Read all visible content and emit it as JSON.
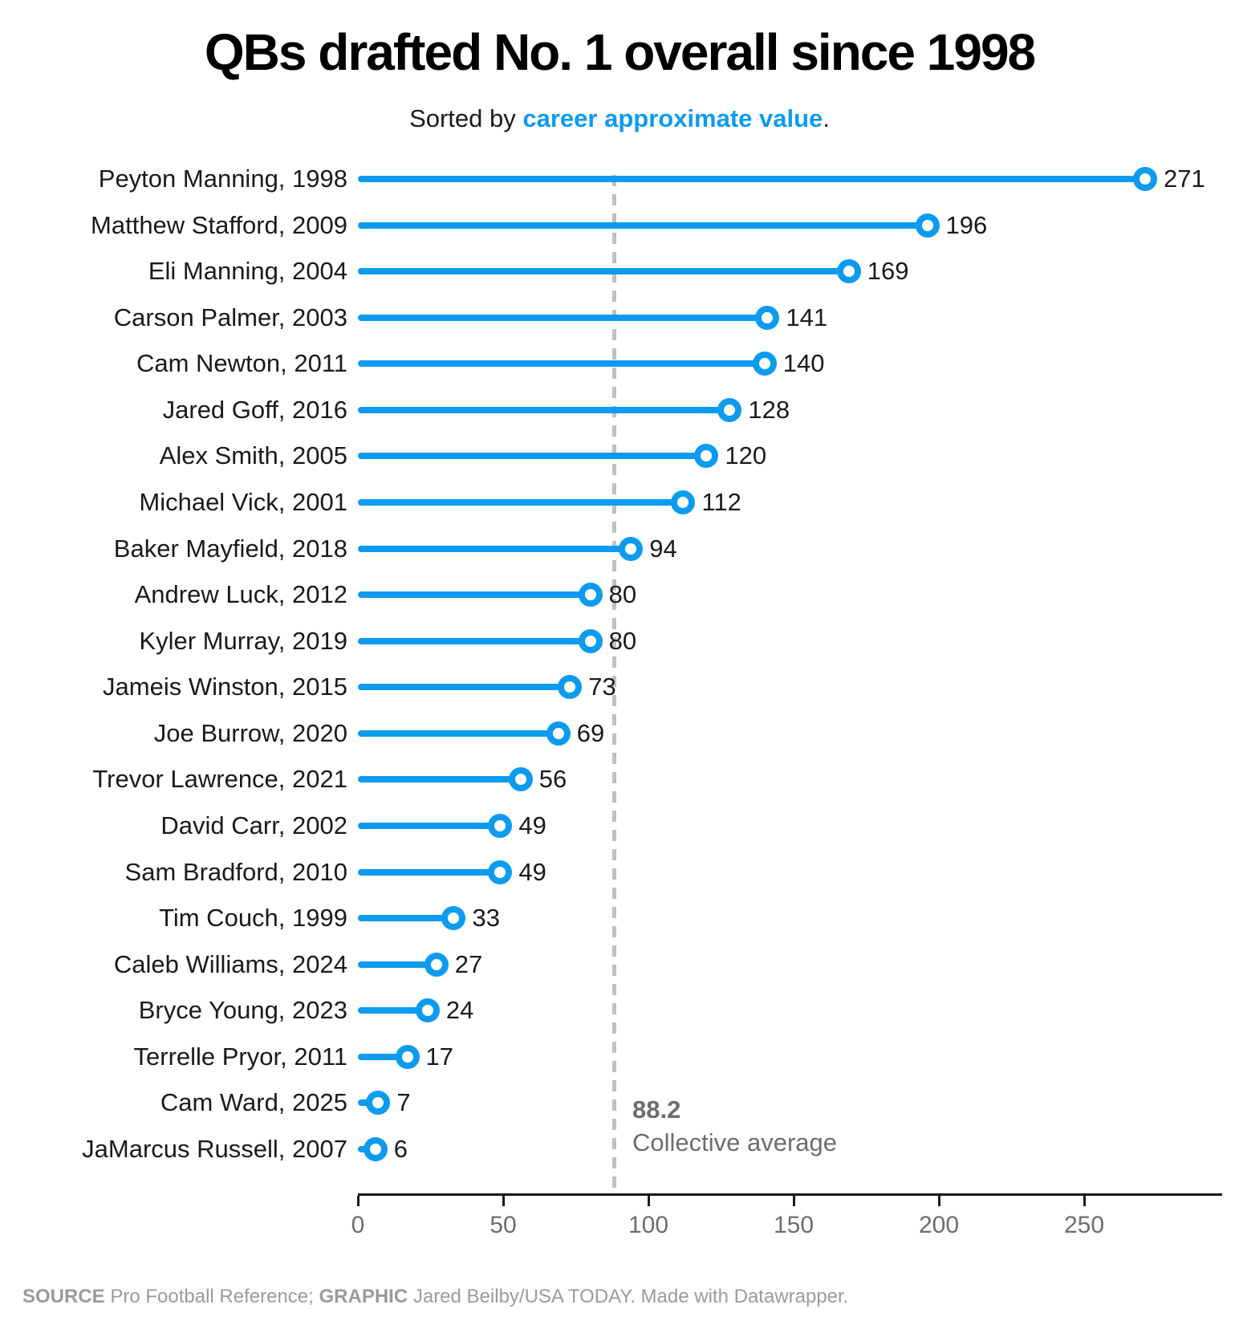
{
  "page": {
    "title": "QBs drafted No. 1 overall since 1998",
    "subtitle": {
      "prefix": "Sorted by ",
      "highlight": "career approximate value",
      "suffix": "."
    },
    "footer": {
      "source_label": "SOURCE",
      "source_text": " Pro Football Reference; ",
      "graphic_label": "GRAPHIC",
      "graphic_text": " Jared Beilby/USA TODAY. ",
      "made_with": "Made with Datawrapper."
    }
  },
  "colors": {
    "accent_blue": "#0d9bf0",
    "text_dark": "#1a1a1a",
    "annotation_gray": "#6d6d6d",
    "footer_gray": "#9b9b9b",
    "dash_gray": "#c0c0c0"
  },
  "chart_data": {
    "type": "lollipop",
    "title": "QBs drafted No. 1 overall since 1998",
    "subtitle": "Sorted by career approximate value.",
    "xlabel": "",
    "ylabel": "",
    "xlim": [
      0,
      297
    ],
    "grid": false,
    "players": [
      {
        "label": "Peyton Manning, 1998",
        "value": 271
      },
      {
        "label": "Matthew Stafford, 2009",
        "value": 196
      },
      {
        "label": "Eli Manning, 2004",
        "value": 169
      },
      {
        "label": "Carson Palmer, 2003",
        "value": 141
      },
      {
        "label": "Cam Newton, 2011",
        "value": 140
      },
      {
        "label": "Jared Goff, 2016",
        "value": 128
      },
      {
        "label": "Alex Smith, 2005",
        "value": 120
      },
      {
        "label": "Michael Vick, 2001",
        "value": 112
      },
      {
        "label": "Baker Mayfield, 2018",
        "value": 94
      },
      {
        "label": "Andrew Luck, 2012",
        "value": 80
      },
      {
        "label": "Kyler Murray, 2019",
        "value": 80
      },
      {
        "label": "Jameis Winston, 2015",
        "value": 73
      },
      {
        "label": "Joe Burrow, 2020",
        "value": 69
      },
      {
        "label": "Trevor Lawrence, 2021",
        "value": 56
      },
      {
        "label": "David Carr, 2002",
        "value": 49
      },
      {
        "label": "Sam Bradford, 2010",
        "value": 49
      },
      {
        "label": "Tim Couch, 1999",
        "value": 33
      },
      {
        "label": "Caleb Williams, 2024",
        "value": 27
      },
      {
        "label": "Bryce Young, 2023",
        "value": 24
      },
      {
        "label": "Terrelle Pryor, 2011",
        "value": 17
      },
      {
        "label": "Cam Ward, 2025",
        "value": 7
      },
      {
        "label": "JaMarcus Russell, 2007",
        "value": 6
      }
    ],
    "average": {
      "value": 88.2,
      "label": "88.2",
      "caption": "Collective average"
    },
    "x_axis": {
      "tick_values": [
        0,
        50,
        100,
        150,
        200,
        250
      ],
      "ticks": [
        "0",
        "50",
        "100",
        "150",
        "200",
        "250"
      ]
    }
  }
}
